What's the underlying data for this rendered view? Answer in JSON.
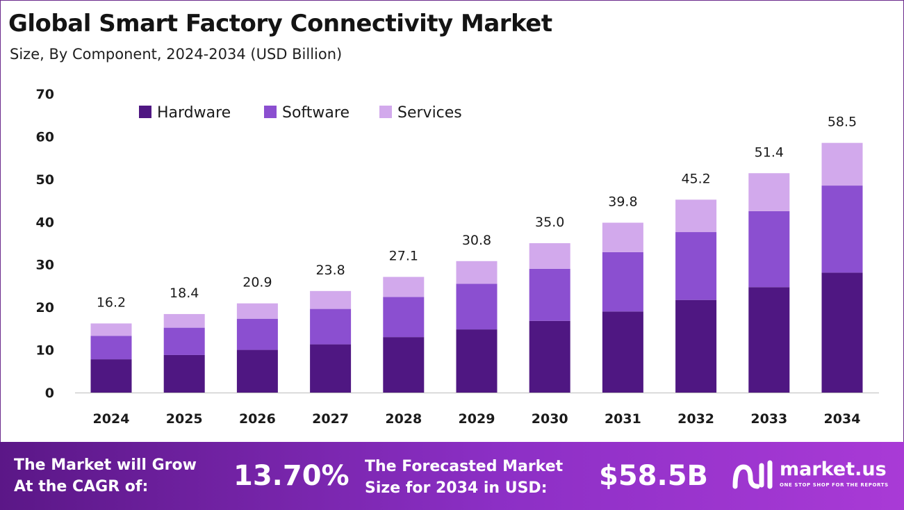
{
  "header": {
    "title": "Global Smart Factory Connectivity Market",
    "subtitle": "Size, By Component, 2024-2034 (USD Billion)"
  },
  "colors": {
    "hardware": "#4f1782",
    "software": "#8b4fd0",
    "services": "#d2a9ec",
    "axis": "#bdbdbd",
    "text": "#1a1a1a"
  },
  "chart_data": {
    "type": "bar",
    "stacked": true,
    "categories": [
      "2024",
      "2025",
      "2026",
      "2027",
      "2028",
      "2029",
      "2030",
      "2031",
      "2032",
      "2033",
      "2034"
    ],
    "series": [
      {
        "name": "Hardware",
        "values": [
          7.8,
          8.8,
          10.0,
          11.3,
          13.0,
          14.8,
          16.8,
          19.0,
          21.7,
          24.7,
          28.1
        ]
      },
      {
        "name": "Software",
        "values": [
          5.5,
          6.4,
          7.3,
          8.3,
          9.4,
          10.7,
          12.2,
          13.9,
          15.9,
          17.8,
          20.4
        ]
      },
      {
        "name": "Services",
        "values": [
          2.9,
          3.2,
          3.6,
          4.2,
          4.7,
          5.3,
          6.0,
          6.9,
          7.6,
          8.9,
          10.0
        ]
      }
    ],
    "totals": [
      "16.2",
      "18.4",
      "20.9",
      "23.8",
      "27.1",
      "30.8",
      "35.0",
      "39.8",
      "45.2",
      "51.4",
      "58.5"
    ],
    "yticks": [
      0,
      10,
      20,
      30,
      40,
      50,
      60,
      70
    ],
    "ylim": [
      0,
      70
    ],
    "grid": false,
    "legend_position": "top-left"
  },
  "footer": {
    "cagr_label_line1": "The Market will Grow",
    "cagr_label_line2": "At the CAGR of:",
    "cagr_value": "13.70%",
    "forecast_label_line1": "The Forecasted Market",
    "forecast_label_line2": "Size for 2034 in USD:",
    "forecast_value": "$58.5B",
    "brand_name": "market.us",
    "brand_tagline": "ONE STOP SHOP FOR THE REPORTS"
  }
}
